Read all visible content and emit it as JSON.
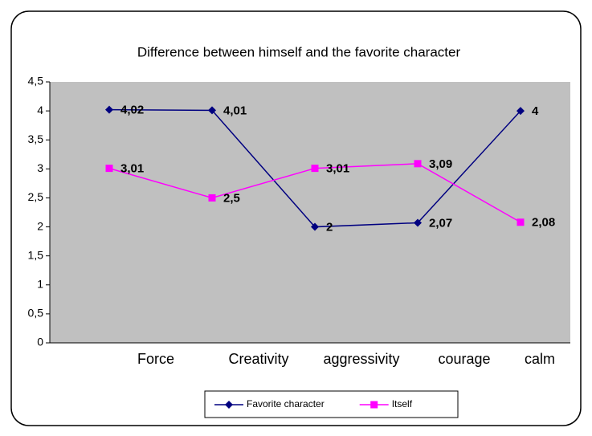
{
  "chart_data": {
    "type": "line",
    "title": "Difference between himself and the favorite character",
    "categories": [
      "Force",
      "Creativity",
      "aggressivity",
      "courage",
      "calm"
    ],
    "series": [
      {
        "name": "Favorite character",
        "color": "#000080",
        "marker": "diamond",
        "values": [
          4.02,
          4.01,
          2,
          2.07,
          4
        ],
        "value_labels": [
          "4,02",
          "4,01",
          "2",
          "2,07",
          "4"
        ]
      },
      {
        "name": "Itself",
        "color": "#ff00ff",
        "marker": "square",
        "values": [
          3.01,
          2.5,
          3.01,
          3.09,
          2.08
        ],
        "value_labels": [
          "3,01",
          "2,5",
          "3,01",
          "3,09",
          "2,08"
        ]
      }
    ],
    "ylim": [
      0,
      4.5
    ],
    "yticks": [
      0,
      {
        "value": 0.5,
        "label": "0,5"
      },
      1,
      {
        "value": 1.5,
        "label": "1,5"
      },
      2,
      {
        "value": 2.5,
        "label": "2,5"
      },
      3,
      {
        "value": 3.5,
        "label": "3,5"
      },
      4,
      {
        "value": 4.5,
        "label": "4,5"
      }
    ],
    "grid": false,
    "legend": "bottom",
    "plot_background": "#c0c0c0"
  }
}
